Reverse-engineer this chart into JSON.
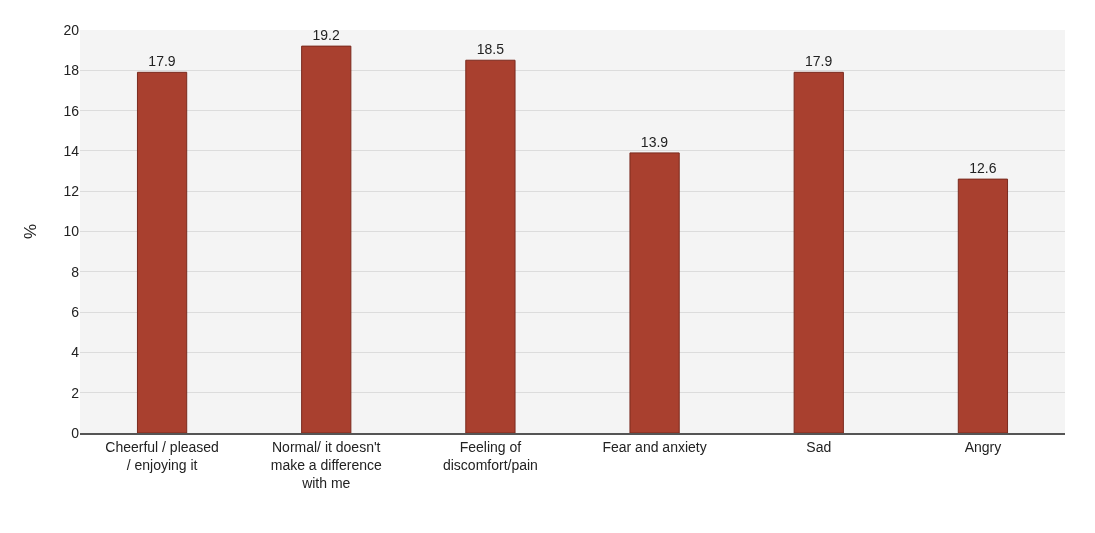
{
  "chart_data": {
    "type": "bar",
    "ylabel": "%",
    "categories": [
      "Cheerful / pleased / enjoying it",
      "Normal/ it doesn't make a difference with me",
      "Feeling of discomfort/pain",
      "Fear and anxiety",
      "Sad",
      "Angry"
    ],
    "values": [
      17.9,
      19.2,
      18.5,
      13.9,
      17.9,
      12.6
    ],
    "color": "#a9402f",
    "ylim": [
      0,
      20
    ],
    "yticks": [
      0,
      2,
      4,
      6,
      8,
      10,
      12,
      14,
      16,
      18,
      20
    ],
    "grid": "y",
    "data_labels": true
  }
}
